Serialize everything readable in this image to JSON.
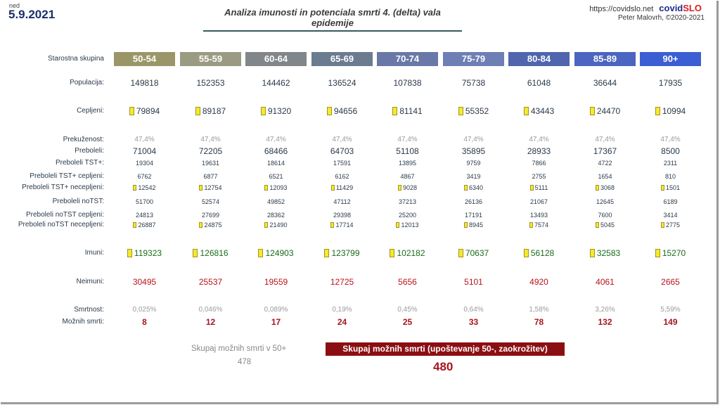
{
  "header": {
    "day": "ned",
    "date": "5.9.2021",
    "title": "Analiza imunosti in potenciala smrti 4. (delta) vala epidemije",
    "url": "https://covidslo.net",
    "brand_a": "covid",
    "brand_b": "SLO",
    "author": "Peter Malovrh, ©2020-2021"
  },
  "groups": {
    "label": "Starostna skupina",
    "items": [
      "50-54",
      "55-59",
      "60-64",
      "65-69",
      "70-74",
      "75-79",
      "80-84",
      "85-89",
      "90+"
    ],
    "colors": [
      "#9b9668",
      "#9b9a82",
      "#81868a",
      "#6b7b90",
      "#6a78a8",
      "#6e7fb6",
      "#4f65ae",
      "#4b65c0",
      "#3b5fd2"
    ]
  },
  "rows": {
    "populacija": {
      "label": "Populacija:",
      "values": [
        "149818",
        "152353",
        "144462",
        "136524",
        "107838",
        "75738",
        "61048",
        "36644",
        "17935"
      ]
    },
    "cepljeni": {
      "label": "Cepljeni:",
      "values": [
        "79894",
        "89187",
        "91320",
        "94656",
        "81141",
        "55352",
        "43443",
        "24470",
        "10994"
      ]
    },
    "prekuzenost": {
      "label": "Prekuženost:",
      "values": [
        "47,4%",
        "47,4%",
        "47,4%",
        "47,4%",
        "47,4%",
        "47,4%",
        "47,4%",
        "47,4%",
        "47,4%"
      ]
    },
    "preboleli": {
      "label": "Preboleli:",
      "values": [
        "71004",
        "72205",
        "68466",
        "64703",
        "51108",
        "35895",
        "28933",
        "17367",
        "8500"
      ]
    },
    "preboleli_tst": {
      "label": "Preboleli TST+:",
      "values": [
        "19304",
        "19631",
        "18614",
        "17591",
        "13895",
        "9759",
        "7866",
        "4722",
        "2311"
      ]
    },
    "preboleli_tst_cep": {
      "label": "Preboleli TST+ cepljeni:",
      "values": [
        "6762",
        "6877",
        "6521",
        "6162",
        "4867",
        "3419",
        "2755",
        "1654",
        "810"
      ]
    },
    "preboleli_tst_necep": {
      "label": "Preboleli TST+ necepljeni:",
      "values": [
        "12542",
        "12754",
        "12093",
        "11429",
        "9028",
        "6340",
        "5111",
        "3068",
        "1501"
      ]
    },
    "preboleli_notst": {
      "label": "Preboleli noTST:",
      "values": [
        "51700",
        "52574",
        "49852",
        "47112",
        "37213",
        "26136",
        "21067",
        "12645",
        "6189"
      ]
    },
    "preboleli_notst_cep": {
      "label": "Preboleli noTST cepljeni:",
      "values": [
        "24813",
        "27699",
        "28362",
        "29398",
        "25200",
        "17191",
        "13493",
        "7600",
        "3414"
      ]
    },
    "preboleli_notst_necep": {
      "label": "Preboleli noTST necepljeni:",
      "values": [
        "26887",
        "24875",
        "21490",
        "17714",
        "12013",
        "8945",
        "7574",
        "5045",
        "2775"
      ]
    },
    "imuni": {
      "label": "Imuni:",
      "values": [
        "119323",
        "126816",
        "124903",
        "123799",
        "102182",
        "70637",
        "56128",
        "32583",
        "15270"
      ]
    },
    "neimuni": {
      "label": "Neimuni:",
      "values": [
        "30495",
        "25537",
        "19559",
        "12725",
        "5656",
        "5101",
        "4920",
        "4061",
        "2665"
      ]
    },
    "smrtnost": {
      "label": "Smrtnost:",
      "values": [
        "0,025%",
        "0,046%",
        "0,089%",
        "0,19%",
        "0,45%",
        "0,64%",
        "1,58%",
        "3,26%",
        "5,59%"
      ]
    },
    "mozne_smrti": {
      "label": "Možnih smrti:",
      "values": [
        "8",
        "12",
        "17",
        "24",
        "25",
        "33",
        "78",
        "132",
        "149"
      ]
    }
  },
  "summary": {
    "total_label": "Skupaj možnih smrti v 50+",
    "total_value": "478",
    "adjusted_label": "Skupaj možnih smrti (upoštevanje 50-, zaokrožitev)",
    "adjusted_value": "480"
  }
}
